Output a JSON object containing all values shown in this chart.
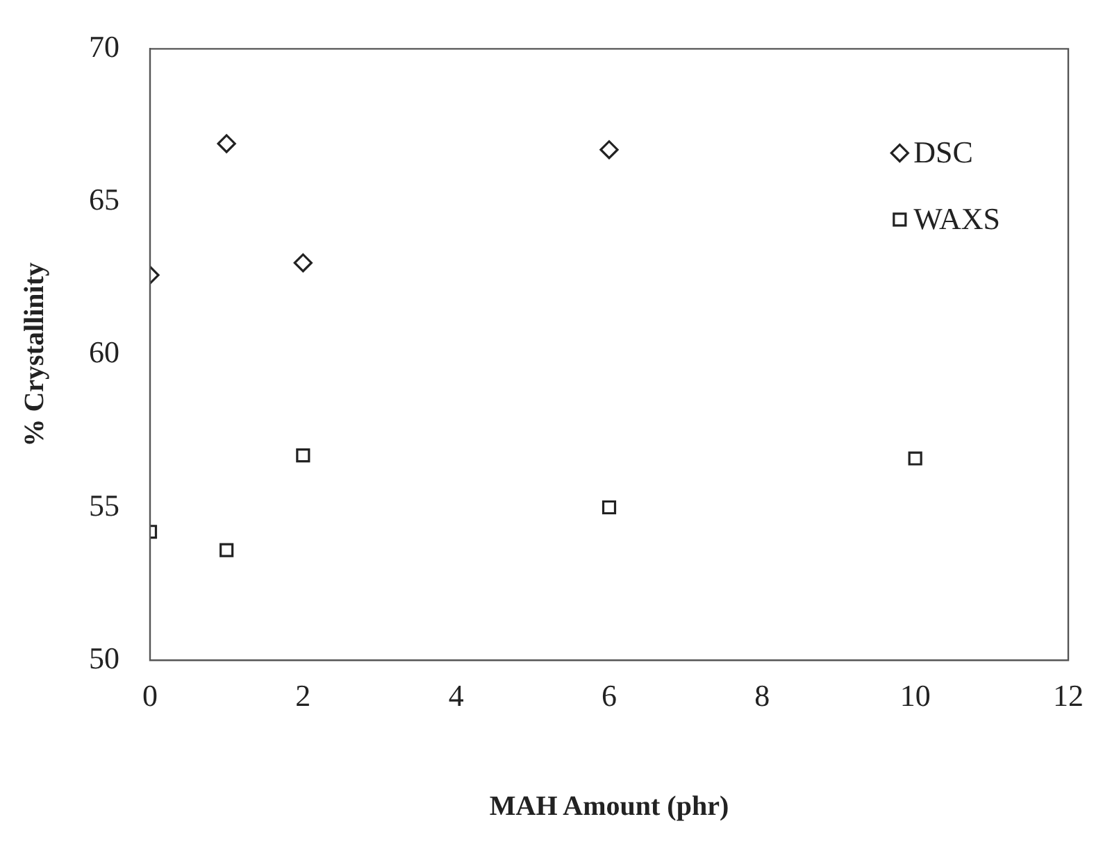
{
  "chart_data": {
    "type": "scatter",
    "xlabel": "MAH Amount (phr)",
    "ylabel": "% Crystallinity",
    "xlim": [
      0,
      12
    ],
    "xticks": [
      0,
      2,
      4,
      6,
      8,
      10,
      12
    ],
    "ylim": [
      50,
      70
    ],
    "yticks": [
      50,
      55,
      60,
      65,
      70
    ],
    "grid": false,
    "legend": "top right",
    "series": [
      {
        "name": "DSC",
        "color": "#222222",
        "marker": "diamond",
        "x": [
          0,
          1,
          2,
          6
        ],
        "values": [
          62.6,
          66.9,
          63.0,
          66.7
        ]
      },
      {
        "name": "WAXS",
        "color": "#222222",
        "marker": "square",
        "x": [
          0,
          1,
          2,
          6,
          10
        ],
        "values": [
          54.2,
          53.6,
          56.7,
          55.0,
          56.6
        ]
      }
    ]
  }
}
